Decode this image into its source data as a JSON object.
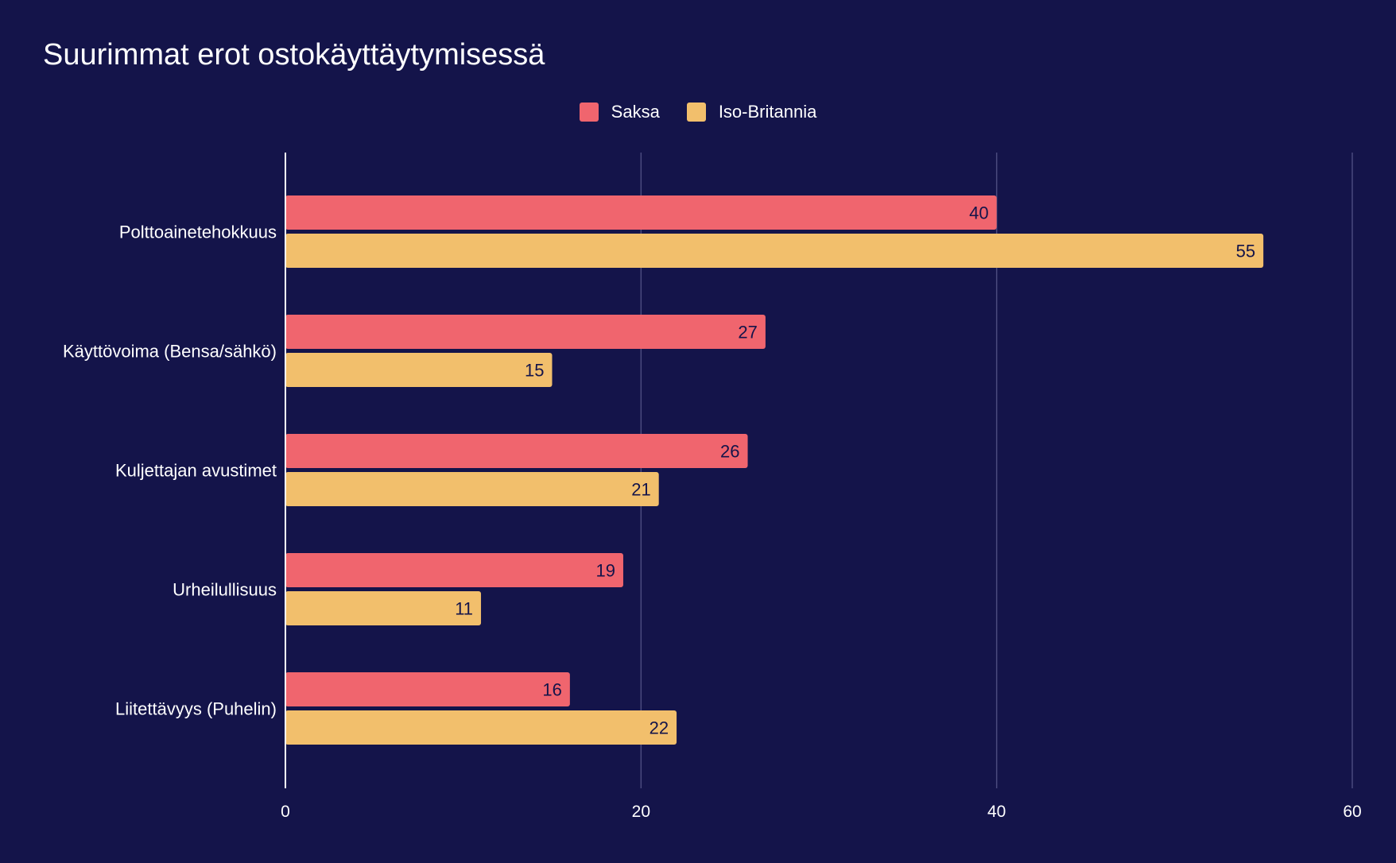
{
  "chart_data": {
    "type": "bar",
    "orientation": "horizontal",
    "title": "Suurimmat erot ostokäyttäytymisessä",
    "categories": [
      "Polttoainetehokkuus",
      "Käyttövoima (Bensa/sähkö)",
      "Kuljettajan avustimet",
      "Urheilullisuus",
      "Liitettävyys (Puhelin)"
    ],
    "series": [
      {
        "name": "Saksa",
        "color": "#f0656e",
        "values": [
          40,
          27,
          26,
          19,
          16
        ]
      },
      {
        "name": "Iso-Britannia",
        "color": "#f2bf6c",
        "values": [
          55,
          15,
          21,
          11,
          22
        ]
      }
    ],
    "xlim": [
      0,
      60
    ],
    "xticks": [
      0,
      20,
      40,
      60
    ],
    "grid": true,
    "legend_position": "top-center",
    "data_labels": true
  },
  "colors": {
    "background": "#14144a",
    "gridline": "#4a4a7e",
    "axis": "#ffffff",
    "label_text": "#ffffff",
    "bar_label_text": "#14144a"
  }
}
